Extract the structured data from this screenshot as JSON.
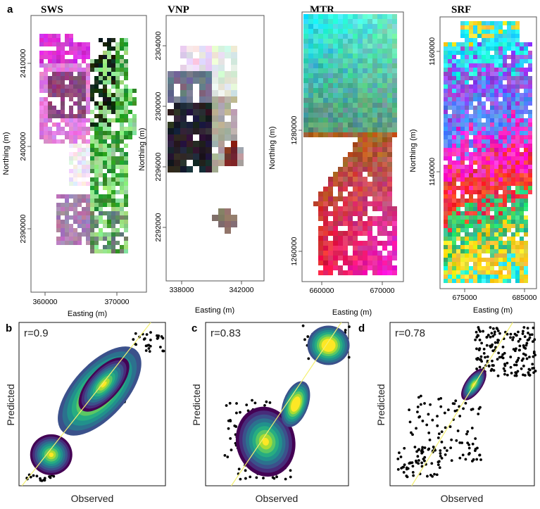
{
  "panel_labels": [
    "a",
    "b",
    "c",
    "d"
  ],
  "chart_data": [
    {
      "type": "heatmap",
      "title": "SWS",
      "xlabel": "Easting (m)",
      "ylabel": "Northing (m)",
      "xticks": [
        "360000",
        "370000"
      ],
      "yticks": [
        "2410000",
        "2400000",
        "2390000"
      ],
      "xlim": [
        358000,
        372000
      ],
      "ylim": [
        2383000,
        2415000
      ]
    },
    {
      "type": "heatmap",
      "title": "VNP",
      "xlabel": "Easting (m)",
      "ylabel": "Northing (m)",
      "xticks": [
        "338000",
        "342000"
      ],
      "yticks": [
        "2304000",
        "2300000",
        "2296000",
        "2292000"
      ],
      "xlim": [
        337000,
        343500
      ],
      "ylim": [
        2289000,
        2306500
      ]
    },
    {
      "type": "heatmap",
      "title": "MTR",
      "xlabel": "Easting (m)",
      "ylabel": "Northing (m)",
      "xticks": [
        "660000",
        "670000"
      ],
      "yticks": [
        "1280000",
        "1260000"
      ],
      "xlim": [
        655000,
        674000
      ],
      "ylim": [
        1256000,
        1298000
      ]
    },
    {
      "type": "heatmap",
      "title": "SRF",
      "xlabel": "Easting (m)",
      "ylabel": "Northing (m)",
      "xticks": [
        "675000",
        "685000"
      ],
      "yticks": [
        "1160000",
        "1140000"
      ],
      "xlim": [
        671000,
        687000
      ],
      "ylim": [
        1122000,
        1163000
      ]
    },
    {
      "type": "scatter",
      "title": "r=0.9",
      "xlabel": "Observed",
      "ylabel": "Predicted",
      "r": 0.9,
      "density_centers": [
        [
          0.22,
          0.19
        ],
        [
          0.46,
          0.55
        ],
        [
          0.62,
          0.67
        ]
      ]
    },
    {
      "type": "scatter",
      "title": "r=0.83",
      "xlabel": "Observed",
      "ylabel": "Predicted",
      "r": 0.83,
      "density_centers": [
        [
          0.43,
          0.27
        ],
        [
          0.64,
          0.5
        ],
        [
          0.88,
          0.87
        ]
      ]
    },
    {
      "type": "scatter",
      "title": "r=0.78",
      "xlabel": "Observed",
      "ylabel": "Predicted",
      "r": 0.78,
      "density_centers": [
        [
          0.58,
          0.62
        ]
      ]
    }
  ]
}
